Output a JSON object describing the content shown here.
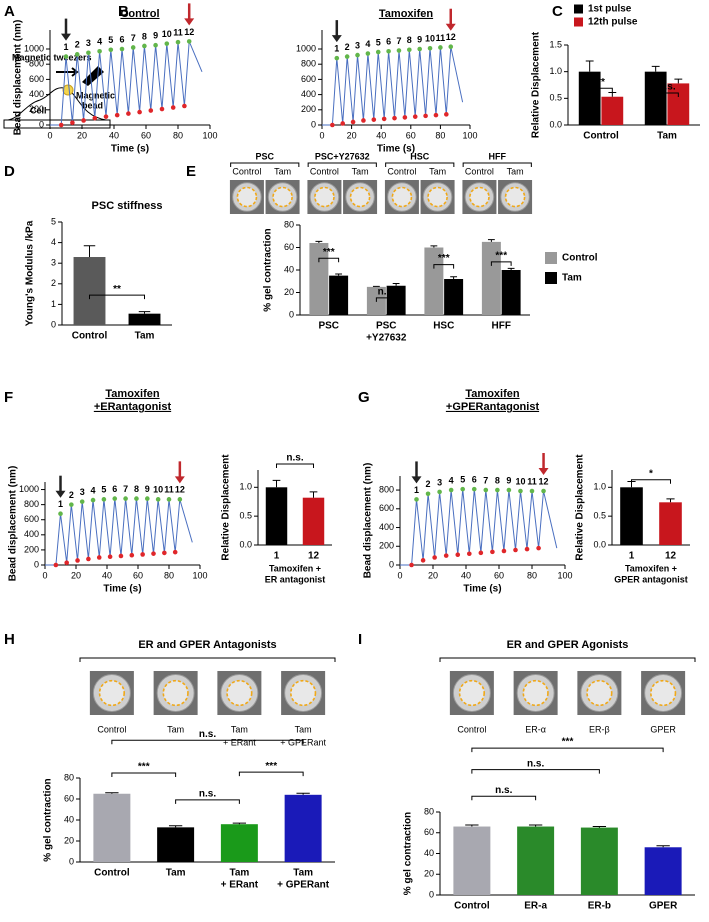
{
  "panels": [
    "A",
    "B",
    "C",
    "D",
    "E",
    "F",
    "G",
    "H",
    "I"
  ],
  "panel_a": {
    "labels": [
      "Magnetic tweezers",
      [
        "Magnetic",
        "bead"
      ],
      "Cell"
    ]
  },
  "chart_data": [
    {
      "type": "line",
      "title": "Control",
      "ylabel": "Bead displacement (nm)",
      "xlabel": "Time (s)",
      "x": [
        0,
        7,
        10,
        14,
        17,
        21,
        24,
        28,
        31,
        35,
        38,
        42,
        45,
        49,
        52,
        56,
        59,
        63,
        66,
        70,
        73,
        77,
        80,
        84,
        87,
        95
      ],
      "series": [
        {
          "color": "#4a6fc0",
          "style": "line",
          "values": [
            0,
            0,
            900,
            30,
            930,
            60,
            950,
            90,
            970,
            110,
            990,
            130,
            1000,
            150,
            1020,
            170,
            1040,
            190,
            1050,
            210,
            1070,
            230,
            1090,
            250,
            1100,
            700
          ]
        },
        {
          "color": "#62b64a",
          "style": "points",
          "values": [
            null,
            null,
            900,
            null,
            930,
            null,
            950,
            null,
            970,
            null,
            990,
            null,
            1000,
            null,
            1020,
            null,
            1040,
            null,
            1050,
            null,
            1070,
            null,
            1090,
            null,
            1100,
            null
          ]
        },
        {
          "color": "#e0262a",
          "style": "points",
          "values": [
            null,
            0,
            null,
            30,
            null,
            60,
            null,
            90,
            null,
            110,
            null,
            130,
            null,
            150,
            null,
            170,
            null,
            190,
            null,
            210,
            null,
            230,
            null,
            250,
            null,
            null
          ]
        }
      ],
      "pulse_labels": [
        "1",
        "2",
        "3",
        "4",
        "5",
        "6",
        "7",
        "8",
        "9",
        "10",
        "11",
        "12"
      ],
      "xlim": [
        0,
        100
      ],
      "xticks": [
        0,
        20,
        40,
        60,
        80,
        100
      ],
      "ylim": [
        0,
        1250
      ],
      "yticks": [
        0,
        200,
        400,
        600,
        800,
        1000
      ]
    },
    {
      "type": "line",
      "title": "Tamoxifen",
      "xlabel": "Time (s)",
      "x": [
        0,
        7,
        10,
        14,
        17,
        21,
        24,
        28,
        31,
        35,
        38,
        42,
        45,
        49,
        52,
        56,
        59,
        63,
        66,
        70,
        73,
        77,
        80,
        84,
        87,
        95
      ],
      "series": [
        {
          "color": "#4a6fc0",
          "style": "line",
          "values": [
            0,
            0,
            880,
            20,
            900,
            40,
            920,
            60,
            940,
            70,
            960,
            80,
            970,
            90,
            980,
            100,
            990,
            110,
            1000,
            120,
            1010,
            130,
            1020,
            140,
            1030,
            300
          ]
        },
        {
          "color": "#62b64a",
          "style": "points",
          "values": [
            null,
            null,
            880,
            null,
            900,
            null,
            920,
            null,
            940,
            null,
            960,
            null,
            970,
            null,
            980,
            null,
            990,
            null,
            1000,
            null,
            1010,
            null,
            1020,
            null,
            1030,
            null
          ]
        },
        {
          "color": "#e0262a",
          "style": "points",
          "values": [
            null,
            0,
            null,
            20,
            null,
            40,
            null,
            60,
            null,
            70,
            null,
            80,
            null,
            90,
            null,
            100,
            null,
            110,
            null,
            120,
            null,
            130,
            null,
            140,
            null,
            null
          ]
        }
      ],
      "pulse_labels": [
        "1",
        "2",
        "3",
        "4",
        "5",
        "6",
        "7",
        "8",
        "9",
        "10",
        "11",
        "12"
      ],
      "xlim": [
        0,
        100
      ],
      "xticks": [
        0,
        20,
        40,
        60,
        80,
        100
      ],
      "ylim": [
        0,
        1250
      ],
      "yticks": [
        0,
        200,
        400,
        600,
        800,
        1000
      ]
    },
    {
      "type": "bar",
      "ylabel": "Relative Displacement",
      "categories": [
        "Control",
        "Tam"
      ],
      "series": [
        {
          "name": "1st pulse",
          "color": "#000000",
          "values": [
            1.0,
            1.0
          ],
          "errors": [
            0.2,
            0.1
          ]
        },
        {
          "name": "12th pulse",
          "color": "#c8161d",
          "values": [
            0.53,
            0.78
          ],
          "errors": [
            0.08,
            0.08
          ]
        }
      ],
      "legend": "top",
      "annotations": [
        "**",
        "n.s."
      ],
      "ylim": [
        0,
        1.5
      ],
      "yticks": [
        {
          "value": 0,
          "label": "0.0"
        },
        {
          "value": 0.5,
          "label": "0.5"
        },
        {
          "value": 1,
          "label": "1.0"
        },
        {
          "value": 1.5,
          "label": "1.5"
        }
      ]
    },
    {
      "type": "bar",
      "title": "PSC stiffness",
      "ylabel": "Young's Modulus /kPa",
      "categories": [
        "Control",
        "Tam"
      ],
      "values": [
        3.3,
        0.55
      ],
      "errors": [
        0.55,
        0.1
      ],
      "colors": [
        "#5a5a5a",
        "#000000"
      ],
      "annotations": [
        "**"
      ],
      "ylim": [
        0,
        5
      ],
      "yticks": [
        0,
        1,
        2,
        3,
        4,
        5
      ]
    },
    {
      "type": "bar",
      "ylabel": "% gel contraction",
      "categories": [
        "PSC",
        [
          "PSC",
          "+Y27632"
        ],
        "HSC",
        "HFF"
      ],
      "series": [
        {
          "name": "Control",
          "color": "#999999",
          "values": [
            64,
            25,
            60,
            65
          ],
          "errors": [
            1.5,
            0.5,
            1.5,
            2
          ]
        },
        {
          "name": "Tam",
          "color": "#000000",
          "values": [
            35,
            26,
            32,
            40
          ],
          "errors": [
            1.5,
            2,
            2,
            1.5
          ]
        }
      ],
      "legend": "right",
      "annotations": [
        "***",
        "n.s.",
        "***",
        "***"
      ],
      "thumbnails": {
        "labels": [
          "PSC",
          "PSC+Y27632",
          "HSC",
          "HFF"
        ],
        "sublabels": [
          "Control",
          "Tam"
        ]
      },
      "ylim": [
        0,
        80
      ],
      "yticks": [
        0,
        20,
        40,
        60,
        80
      ]
    },
    {
      "type": "line",
      "title": [
        "Tamoxifen",
        "+ERantagonist"
      ],
      "ylabel": "Bead displacement (nm)",
      "xlabel": "Time (s)",
      "x": [
        0,
        7,
        10,
        14,
        17,
        21,
        24,
        28,
        31,
        35,
        38,
        42,
        45,
        49,
        52,
        56,
        59,
        63,
        66,
        70,
        73,
        77,
        80,
        84,
        87,
        95
      ],
      "series": [
        {
          "color": "#4a6fc0",
          "style": "line",
          "values": [
            0,
            0,
            680,
            30,
            800,
            60,
            840,
            80,
            860,
            100,
            870,
            110,
            880,
            120,
            880,
            130,
            880,
            140,
            880,
            150,
            870,
            160,
            870,
            170,
            870,
            300
          ]
        },
        {
          "color": "#62b64a",
          "style": "points",
          "values": [
            null,
            null,
            680,
            null,
            800,
            null,
            840,
            null,
            860,
            null,
            870,
            null,
            880,
            null,
            880,
            null,
            880,
            null,
            880,
            null,
            870,
            null,
            870,
            null,
            870,
            null
          ]
        },
        {
          "color": "#e0262a",
          "style": "points",
          "values": [
            null,
            0,
            null,
            30,
            null,
            60,
            null,
            80,
            null,
            100,
            null,
            110,
            null,
            120,
            null,
            130,
            null,
            140,
            null,
            150,
            null,
            160,
            null,
            170,
            null,
            null
          ]
        }
      ],
      "pulse_labels": [
        "1",
        "2",
        "3",
        "4",
        "5",
        "6",
        "7",
        "8",
        "9",
        "10",
        "11",
        "12"
      ],
      "xlim": [
        0,
        100
      ],
      "xticks": [
        0,
        20,
        40,
        60,
        80,
        100
      ],
      "ylim": [
        0,
        1100
      ],
      "yticks": [
        0,
        200,
        400,
        600,
        800,
        1000
      ]
    },
    {
      "type": "bar",
      "ylabel": "Relative Displacement",
      "categories": [
        "1",
        "12"
      ],
      "xlabel": [
        "Tamoxifen +",
        "ER antagonist"
      ],
      "values": [
        1.0,
        0.82
      ],
      "errors": [
        0.12,
        0.1
      ],
      "colors": [
        "#000000",
        "#c8161d"
      ],
      "annotations": [
        "n.s."
      ],
      "ylim": [
        0,
        1.3
      ],
      "yticks": [
        {
          "value": 0,
          "label": "0.0"
        },
        {
          "value": 0.5,
          "label": "0.5"
        },
        {
          "value": 1,
          "label": "1.0"
        }
      ]
    },
    {
      "type": "line",
      "title": [
        "Tamoxifen",
        "+GPERantagonist"
      ],
      "ylabel": "Bead displacement (nm)",
      "xlabel": "Time (s)",
      "x": [
        0,
        7,
        10,
        14,
        17,
        21,
        24,
        28,
        31,
        35,
        38,
        42,
        45,
        49,
        52,
        56,
        59,
        63,
        66,
        70,
        73,
        77,
        80,
        84,
        87,
        95
      ],
      "series": [
        {
          "color": "#4a6fc0",
          "style": "line",
          "values": [
            0,
            0,
            700,
            50,
            760,
            80,
            780,
            100,
            800,
            110,
            810,
            120,
            810,
            130,
            800,
            140,
            800,
            150,
            800,
            160,
            790,
            170,
            790,
            180,
            790,
            180
          ]
        },
        {
          "color": "#62b64a",
          "style": "points",
          "values": [
            null,
            null,
            700,
            null,
            760,
            null,
            780,
            null,
            800,
            null,
            810,
            null,
            810,
            null,
            800,
            null,
            800,
            null,
            800,
            null,
            790,
            null,
            790,
            null,
            790,
            null
          ]
        },
        {
          "color": "#e0262a",
          "style": "points",
          "values": [
            null,
            0,
            null,
            50,
            null,
            80,
            null,
            100,
            null,
            110,
            null,
            120,
            null,
            130,
            null,
            140,
            null,
            150,
            null,
            160,
            null,
            170,
            null,
            180,
            null,
            null
          ]
        }
      ],
      "pulse_labels": [
        "1",
        "2",
        "3",
        "4",
        "5",
        "6",
        "7",
        "8",
        "9",
        "10",
        "11",
        "12"
      ],
      "xlim": [
        0,
        100
      ],
      "xticks": [
        0,
        20,
        40,
        60,
        80,
        100
      ],
      "ylim": [
        0,
        950
      ],
      "yticks": [
        0,
        200,
        400,
        600,
        800
      ]
    },
    {
      "type": "bar",
      "ylabel": "Relative Displacement",
      "categories": [
        "1",
        "12"
      ],
      "xlabel": [
        "Tamoxifen +",
        "GPER antagonist"
      ],
      "values": [
        1.0,
        0.74
      ],
      "errors": [
        0.1,
        0.06
      ],
      "colors": [
        "#000000",
        "#c8161d"
      ],
      "annotations": [
        "*"
      ],
      "ylim": [
        0,
        1.3
      ],
      "yticks": [
        {
          "value": 0,
          "label": "0.0"
        },
        {
          "value": 0.5,
          "label": "0.5"
        },
        {
          "value": 1,
          "label": "1.0"
        }
      ]
    },
    {
      "type": "bar",
      "title": "ER and GPER Antagonists",
      "ylabel": "% gel contraction",
      "categories": [
        "Control",
        "Tam",
        [
          "Tam",
          "+ ERant"
        ],
        [
          "Tam",
          "+ GPERant"
        ]
      ],
      "values": [
        65,
        33,
        36,
        64
      ],
      "errors": [
        1,
        1.5,
        1,
        1.5
      ],
      "colors": [
        "#a8a8b0",
        "#000000",
        "#1a9a1a",
        "#1a1ab8"
      ],
      "annotations": [
        "n.s.",
        "***",
        "n.s.",
        "***"
      ],
      "thumbnails": {
        "labels": [
          "Control",
          "Tam",
          [
            "Tam",
            "+ ERant"
          ],
          [
            "Tam",
            "+ GPERant"
          ]
        ]
      },
      "ylim": [
        0,
        80
      ],
      "yticks": [
        0,
        20,
        40,
        60,
        80
      ]
    },
    {
      "type": "bar",
      "title": "ER and GPER Agonists",
      "ylabel": "% gel contraction",
      "categories": [
        "Control",
        "ER-a",
        "ER-b",
        "GPER"
      ],
      "values": [
        66,
        66,
        65,
        46
      ],
      "errors": [
        1.5,
        1.5,
        1,
        1.5
      ],
      "colors": [
        "#a8a8b0",
        "#2a8a2a",
        "#2a8a2a",
        "#1a1ab8"
      ],
      "annotations": [
        "***",
        "n.s.",
        "n.s."
      ],
      "thumbnails": {
        "labels": [
          "Control",
          "ER-α",
          "ER-β",
          "GPER"
        ]
      },
      "ylim": [
        0,
        80
      ],
      "yticks": [
        0,
        20,
        40,
        60,
        80
      ]
    }
  ]
}
